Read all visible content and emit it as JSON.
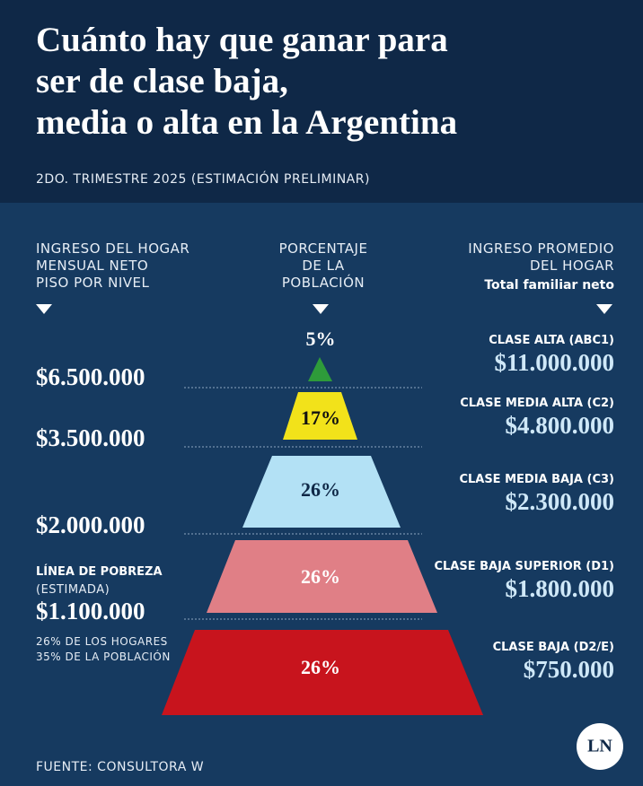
{
  "header": {
    "title_lines": [
      "Cuánto hay que ganar para",
      "ser de clase baja,",
      "media o alta en la Argentina"
    ],
    "subtitle": "2DO. TRIMESTRE 2025 (ESTIMACIÓN PRELIMINAR)"
  },
  "columns": {
    "left": [
      "INGRESO DEL HOGAR",
      "MENSUAL NETO",
      "PISO POR NIVEL"
    ],
    "middle": [
      "PORCENTAJE",
      "DE LA",
      "POBLACIÓN"
    ],
    "right": [
      "INGRESO PROMEDIO",
      "DEL HOGAR"
    ],
    "right_sub": "Total familiar neto"
  },
  "thresholds": [
    "$6.500.000",
    "$3.500.000",
    "$2.000.000"
  ],
  "poverty": {
    "label": "LÍNEA DE POBREZA",
    "note": "(ESTIMADA)",
    "value": "$1.100.000",
    "details": [
      "26% DE LOS HOGARES",
      "35% DE LA POBLACIÓN"
    ]
  },
  "levels": [
    {
      "percent": "5%",
      "name": "CLASE ALTA (ABC1)",
      "income": "$11.000.000",
      "color": "#2e9b3a"
    },
    {
      "percent": "17%",
      "name": "CLASE MEDIA ALTA (C2)",
      "income": "$4.800.000",
      "color": "#f2e21a"
    },
    {
      "percent": "26%",
      "name": "CLASE MEDIA BAJA (C3)",
      "income": "$2.300.000",
      "color": "#b3e1f5"
    },
    {
      "percent": "26%",
      "name": "CLASE BAJA SUPERIOR (D1)",
      "income": "$1.800.000",
      "color": "#e07f86"
    },
    {
      "percent": "26%",
      "name": "CLASE BAJA (D2/E)",
      "income": "$750.000",
      "color": "#c8141d"
    }
  ],
  "source": "FUENTE: CONSULTORA W",
  "logo": "LN"
}
